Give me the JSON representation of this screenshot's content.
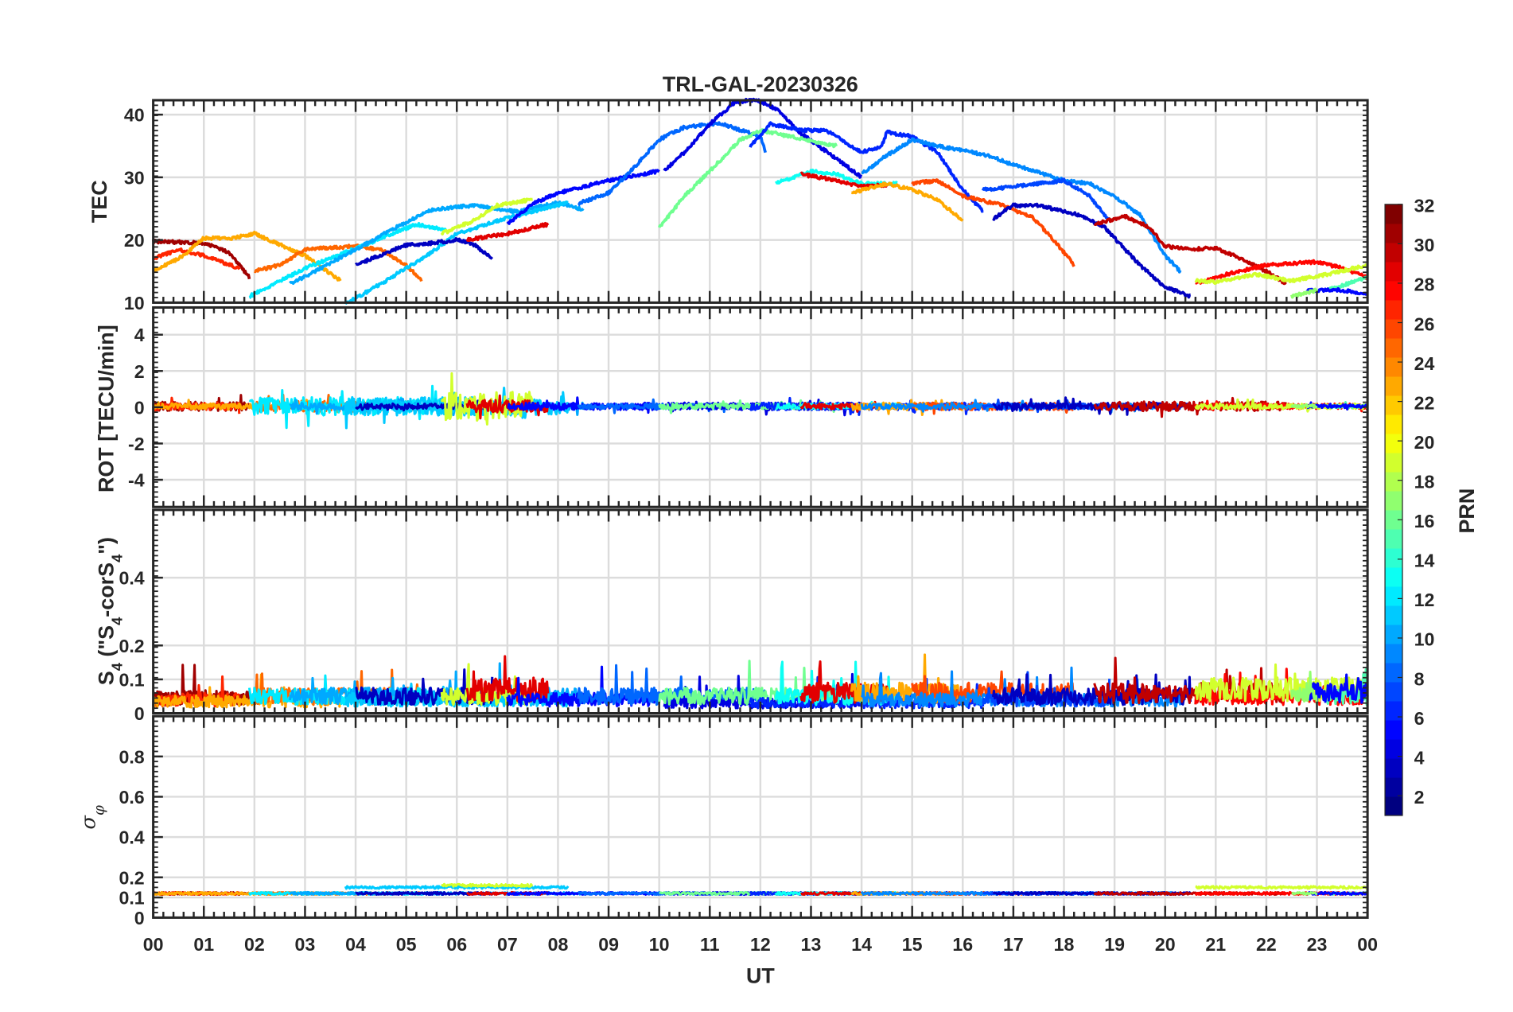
{
  "chart_data": {
    "type": "line",
    "title": "TRL-GAL-20230326",
    "xlabel": "UT",
    "x_ticks": [
      "00",
      "01",
      "02",
      "03",
      "04",
      "05",
      "06",
      "07",
      "08",
      "09",
      "10",
      "11",
      "12",
      "13",
      "14",
      "15",
      "16",
      "17",
      "18",
      "19",
      "20",
      "21",
      "22",
      "23",
      "00"
    ],
    "xlim": [
      0,
      24
    ],
    "grid": true,
    "colorbar": {
      "label": "PRN",
      "range": [
        1,
        32
      ],
      "ticks": [
        "2",
        "4",
        "6",
        "8",
        "10",
        "12",
        "14",
        "16",
        "18",
        "20",
        "22",
        "24",
        "26",
        "28",
        "30",
        "32"
      ],
      "colormap": "jet",
      "placement": "right"
    },
    "panels": [
      {
        "id": "tec",
        "ylabel": "TEC",
        "ylim": [
          10,
          42.3
        ],
        "yticks": [
          "10",
          "20",
          "30",
          "40"
        ]
      },
      {
        "id": "rot",
        "ylabel": "ROT [TECU/min]",
        "ylim": [
          -5.5,
          5.5
        ],
        "yticks": [
          "-4",
          "-2",
          "0",
          "2",
          "4"
        ]
      },
      {
        "id": "s4",
        "ylabel_main": "S",
        "ylabel_sub": "4",
        "ylabel_paren": " (\"S",
        "ylabel_sub2": "4",
        "ylabel_mid": "-corS",
        "ylabel_sub3": "4",
        "ylabel_end": "\")",
        "ylim": [
          0,
          0.6
        ],
        "yticks": [
          "0",
          "0.1",
          "0.2",
          "0.4"
        ]
      },
      {
        "id": "sigma",
        "ylabel_main": "σ",
        "ylabel_sub": "φ",
        "ylim": [
          0,
          1.0
        ],
        "yticks": [
          "0",
          "0.1",
          "0.2",
          "0.4",
          "0.6",
          "0.8"
        ]
      }
    ],
    "segments": [
      {
        "prn": 31,
        "tec": [
          [
            0,
            19.8
          ],
          [
            1.0,
            19.5
          ],
          [
            1.5,
            18
          ],
          [
            1.9,
            14
          ]
        ],
        "rot_amp": 0.25,
        "s4": 0.045,
        "sigma": 0.12
      },
      {
        "prn": 27,
        "tec": [
          [
            0,
            17
          ],
          [
            0.5,
            18.5
          ],
          [
            1.0,
            17.5
          ],
          [
            1.7,
            15.5
          ]
        ],
        "rot_amp": 0.2,
        "s4": 0.04,
        "sigma": 0.12
      },
      {
        "prn": 23,
        "tec": [
          [
            0,
            15
          ],
          [
            0.6,
            17.5
          ],
          [
            1.0,
            20.3
          ],
          [
            1.5,
            20.2
          ],
          [
            2.0,
            21
          ],
          [
            3.0,
            17.5
          ],
          [
            3.7,
            13.5
          ]
        ],
        "rot_amp": 0.15,
        "s4": 0.035,
        "sigma": 0.12
      },
      {
        "prn": 25,
        "tec": [
          [
            2.0,
            15
          ],
          [
            2.5,
            16
          ],
          [
            3.0,
            18.5
          ],
          [
            4.0,
            19
          ],
          [
            4.5,
            18.5
          ],
          [
            5.0,
            16
          ],
          [
            5.3,
            13.5
          ]
        ],
        "rot_amp": 0.3,
        "s4": 0.05,
        "sigma": 0.12
      },
      {
        "prn": 12,
        "tec": [
          [
            1.9,
            11
          ],
          [
            2.4,
            13
          ],
          [
            3.0,
            15.5
          ],
          [
            3.8,
            18
          ],
          [
            5.2,
            22.5
          ],
          [
            5.8,
            21.5
          ]
        ],
        "rot_amp": 0.5,
        "s4": 0.05,
        "sigma": 0.12
      },
      {
        "prn": 10,
        "tec": [
          [
            2.7,
            13
          ],
          [
            3.2,
            15
          ],
          [
            4.0,
            18.5
          ],
          [
            4.8,
            22
          ],
          [
            5.5,
            24.8
          ],
          [
            6.3,
            25.5
          ],
          [
            7.2,
            24.5
          ],
          [
            8.0,
            26
          ],
          [
            8.5,
            24.8
          ]
        ],
        "rot_amp": 0.2,
        "s4": 0.05,
        "sigma": 0.12
      },
      {
        "prn": 11,
        "tec": [
          [
            3.8,
            9.8
          ],
          [
            4.5,
            13
          ],
          [
            5.5,
            18
          ],
          [
            6.0,
            21
          ],
          [
            7.0,
            23.5
          ],
          [
            8.2,
            26
          ]
        ],
        "rot_amp": 0.5,
        "s4": 0.04,
        "sigma": 0.15
      },
      {
        "prn": 3,
        "tec": [
          [
            4.0,
            16
          ],
          [
            5.0,
            19.2
          ],
          [
            5.5,
            19.5
          ],
          [
            6.0,
            20
          ],
          [
            6.3,
            19.5
          ],
          [
            6.7,
            17
          ]
        ],
        "rot_amp": 0.15,
        "s4": 0.05,
        "sigma": 0.12
      },
      {
        "prn": 19,
        "tec": [
          [
            5.7,
            21
          ],
          [
            6.3,
            23
          ],
          [
            6.8,
            25.5
          ],
          [
            7.5,
            26.5
          ]
        ],
        "rot_amp": 0.8,
        "s4": 0.05,
        "sigma": 0.16
      },
      {
        "prn": 29,
        "tec": [
          [
            6.2,
            20
          ],
          [
            7.0,
            21
          ],
          [
            7.8,
            22.5
          ]
        ],
        "rot_amp": 0.35,
        "s4": 0.07,
        "sigma": 0.12
      },
      {
        "prn": 5,
        "tec": [
          [
            7.0,
            22.5
          ],
          [
            7.5,
            25.8
          ],
          [
            8.0,
            27.5
          ],
          [
            9.0,
            29.5
          ],
          [
            10.0,
            31
          ]
        ],
        "rot_amp": 0.2,
        "s4": 0.04,
        "sigma": 0.12
      },
      {
        "prn": 8,
        "tec": [
          [
            8.4,
            25.8
          ],
          [
            9.0,
            27.5
          ],
          [
            9.5,
            31.5
          ],
          [
            10.0,
            36
          ],
          [
            10.5,
            38
          ],
          [
            11.2,
            38.6
          ],
          [
            12.0,
            36.5
          ],
          [
            12.1,
            34
          ]
        ],
        "rot_amp": 0.15,
        "s4": 0.05,
        "sigma": 0.12
      },
      {
        "prn": 4,
        "tec": [
          [
            10.1,
            31
          ],
          [
            10.5,
            34
          ],
          [
            11.0,
            38.5
          ],
          [
            11.5,
            42
          ],
          [
            11.9,
            42.4
          ],
          [
            12.3,
            41
          ],
          [
            12.8,
            37
          ],
          [
            13.5,
            33
          ],
          [
            14.0,
            30
          ]
        ],
        "rot_amp": 0.2,
        "s4": 0.03,
        "sigma": 0.12
      },
      {
        "prn": 16,
        "tec": [
          [
            10.0,
            22
          ],
          [
            10.5,
            27
          ],
          [
            11.0,
            31
          ],
          [
            11.6,
            36
          ],
          [
            12.0,
            37.5
          ],
          [
            12.6,
            36.5
          ],
          [
            13.5,
            35
          ]
        ],
        "rot_amp": 0.15,
        "s4": 0.05,
        "sigma": 0.12
      },
      {
        "prn": 6,
        "tec": [
          [
            11.8,
            35
          ],
          [
            12.2,
            38.5
          ],
          [
            12.8,
            37.5
          ],
          [
            13.3,
            37.5
          ],
          [
            14.0,
            34
          ],
          [
            14.4,
            35
          ],
          [
            14.5,
            37.2
          ],
          [
            15.0,
            36.5
          ],
          [
            15.5,
            34
          ],
          [
            16.0,
            28
          ],
          [
            16.4,
            24.6
          ]
        ],
        "rot_amp": 0.2,
        "s4": 0.03,
        "sigma": 0.12
      },
      {
        "prn": 13,
        "tec": [
          [
            12.3,
            29
          ],
          [
            13.0,
            31
          ],
          [
            13.5,
            30.5
          ],
          [
            14.0,
            29
          ],
          [
            14.7,
            29
          ]
        ],
        "rot_amp": 0.15,
        "s4": 0.05,
        "sigma": 0.12
      },
      {
        "prn": 29,
        "tec": [
          [
            12.8,
            30.5
          ],
          [
            13.5,
            29.5
          ],
          [
            14.0,
            28.5
          ],
          [
            14.5,
            28.8
          ]
        ],
        "rot_amp": 0.15,
        "s4": 0.06,
        "sigma": 0.12
      },
      {
        "prn": 23,
        "tec": [
          [
            13.8,
            27.5
          ],
          [
            14.5,
            29
          ],
          [
            15.0,
            28
          ],
          [
            15.5,
            26.5
          ],
          [
            16.0,
            23
          ]
        ],
        "rot_amp": 0.2,
        "s4": 0.06,
        "sigma": 0.12
      },
      {
        "prn": 26,
        "tec": [
          [
            15.0,
            29
          ],
          [
            15.5,
            29.5
          ],
          [
            16.0,
            27
          ],
          [
            16.8,
            25.5
          ],
          [
            17.4,
            23.5
          ],
          [
            17.9,
            19
          ],
          [
            18.2,
            16
          ]
        ],
        "rot_amp": 0.2,
        "s4": 0.06,
        "sigma": 0.12
      },
      {
        "prn": 9,
        "tec": [
          [
            14.0,
            30.5
          ],
          [
            14.5,
            33.5
          ],
          [
            15.0,
            36
          ],
          [
            15.5,
            35
          ],
          [
            16.5,
            33.5
          ],
          [
            17.0,
            32
          ],
          [
            18.0,
            29.5
          ],
          [
            18.5,
            29
          ],
          [
            19.0,
            27
          ],
          [
            19.5,
            24
          ],
          [
            20.0,
            17.5
          ],
          [
            20.3,
            15
          ]
        ],
        "rot_amp": 0.15,
        "s4": 0.04,
        "sigma": 0.12
      },
      {
        "prn": 7,
        "tec": [
          [
            16.4,
            28
          ],
          [
            17.0,
            28.5
          ],
          [
            17.5,
            29
          ],
          [
            18.0,
            29.5
          ],
          [
            18.5,
            27
          ],
          [
            18.9,
            23
          ]
        ],
        "rot_amp": 0.15,
        "s4": 0.04,
        "sigma": 0.12
      },
      {
        "prn": 3,
        "tec": [
          [
            16.6,
            23.4
          ],
          [
            17.0,
            25.5
          ],
          [
            17.5,
            25.5
          ],
          [
            18.3,
            24
          ],
          [
            18.8,
            22
          ],
          [
            19.5,
            16
          ],
          [
            20.0,
            12.5
          ],
          [
            20.5,
            11
          ]
        ],
        "rot_amp": 0.2,
        "s4": 0.05,
        "sigma": 0.12
      },
      {
        "prn": 30,
        "tec": [
          [
            18.6,
            22.5
          ],
          [
            19.2,
            23.8
          ],
          [
            19.7,
            22
          ],
          [
            20.0,
            19
          ],
          [
            20.5,
            18.5
          ],
          [
            21.0,
            18.7
          ],
          [
            21.5,
            17
          ],
          [
            22.0,
            15
          ],
          [
            22.4,
            13
          ]
        ],
        "rot_amp": 0.25,
        "s4": 0.06,
        "sigma": 0.12
      },
      {
        "prn": 28,
        "tec": [
          [
            20.6,
            13
          ],
          [
            21.2,
            14.5
          ],
          [
            22.0,
            16
          ],
          [
            23.0,
            16.5
          ],
          [
            23.5,
            15.5
          ],
          [
            24,
            14
          ]
        ],
        "rot_amp": 0.15,
        "s4": 0.05,
        "sigma": 0.12
      },
      {
        "prn": 19,
        "tec": [
          [
            20.6,
            13.5
          ],
          [
            21.0,
            13.3
          ],
          [
            21.8,
            14.5
          ],
          [
            22.5,
            13.5
          ],
          [
            23.2,
            14.5
          ],
          [
            24,
            16
          ]
        ],
        "rot_amp": 0.15,
        "s4": 0.07,
        "sigma": 0.15
      },
      {
        "prn": 15,
        "tec": [
          [
            23.2,
            12
          ],
          [
            23.6,
            13
          ],
          [
            24,
            14
          ]
        ],
        "rot_amp": 0.1,
        "s4": 0.05,
        "sigma": 0.12
      },
      {
        "prn": 5,
        "tec": [
          [
            22.8,
            12
          ],
          [
            23.5,
            12
          ],
          [
            24,
            11.3
          ]
        ],
        "rot_amp": 0.1,
        "s4": 0.06,
        "sigma": 0.12
      },
      {
        "prn": 17,
        "tec": [
          [
            22.5,
            11
          ],
          [
            23.0,
            12
          ]
        ],
        "rot_amp": 0.1,
        "s4": 0.05,
        "sigma": 0.12
      }
    ]
  }
}
